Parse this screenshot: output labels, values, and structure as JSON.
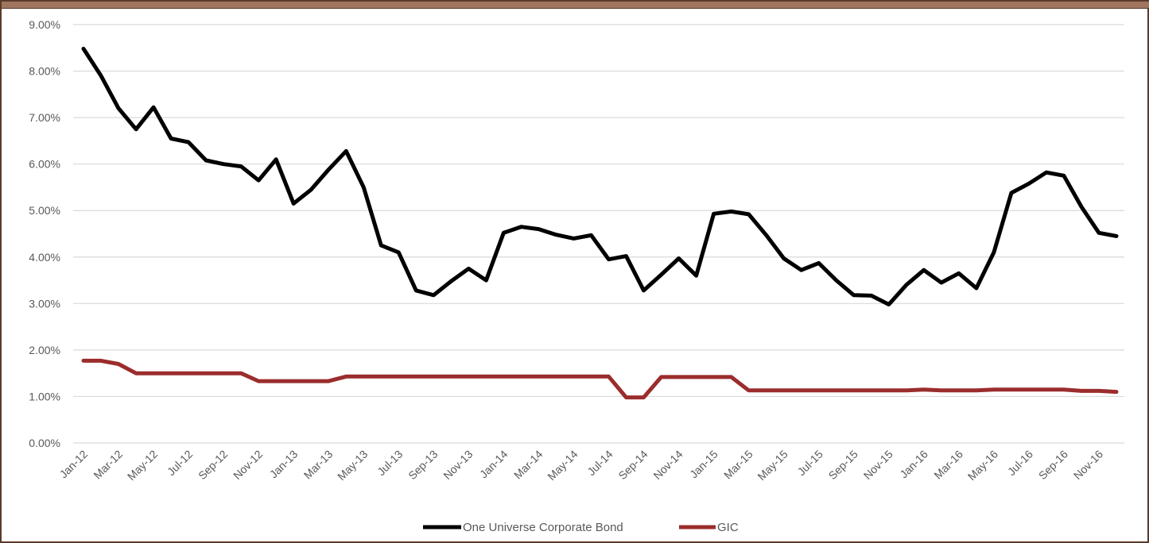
{
  "chart_data": {
    "type": "line",
    "title": "",
    "xlabel": "",
    "ylabel": "",
    "ylim": [
      0,
      9
    ],
    "y_ticks": [
      "0.00%",
      "1.00%",
      "2.00%",
      "3.00%",
      "4.00%",
      "5.00%",
      "6.00%",
      "7.00%",
      "8.00%",
      "9.00%"
    ],
    "x_tick_labels": [
      "Jan-12",
      "Mar-12",
      "May-12",
      "Jul-12",
      "Sep-12",
      "Nov-12",
      "Jan-13",
      "Mar-13",
      "May-13",
      "Jul-13",
      "Sep-13",
      "Nov-13",
      "Jan-14",
      "Mar-14",
      "May-14",
      "Jul-14",
      "Sep-14",
      "Nov-14",
      "Jan-15",
      "Mar-15",
      "May-15",
      "Jul-15",
      "Sep-15",
      "Nov-15",
      "Jan-16",
      "Mar-16",
      "May-16",
      "Jul-16",
      "Sep-16",
      "Nov-16"
    ],
    "x": [
      "Jan-12",
      "Feb-12",
      "Mar-12",
      "Apr-12",
      "May-12",
      "Jun-12",
      "Jul-12",
      "Aug-12",
      "Sep-12",
      "Oct-12",
      "Nov-12",
      "Dec-12",
      "Jan-13",
      "Feb-13",
      "Mar-13",
      "Apr-13",
      "May-13",
      "Jun-13",
      "Jul-13",
      "Aug-13",
      "Sep-13",
      "Oct-13",
      "Nov-13",
      "Dec-13",
      "Jan-14",
      "Feb-14",
      "Mar-14",
      "Apr-14",
      "May-14",
      "Jun-14",
      "Jul-14",
      "Aug-14",
      "Sep-14",
      "Oct-14",
      "Nov-14",
      "Dec-14",
      "Jan-15",
      "Feb-15",
      "Mar-15",
      "Apr-15",
      "May-15",
      "Jun-15",
      "Jul-15",
      "Aug-15",
      "Sep-15",
      "Oct-15",
      "Nov-15",
      "Dec-15",
      "Jan-16",
      "Feb-16",
      "Mar-16",
      "Apr-16",
      "May-16",
      "Jun-16",
      "Jul-16",
      "Aug-16",
      "Sep-16",
      "Oct-16",
      "Nov-16",
      "Dec-16"
    ],
    "grid": true,
    "legend_position": "bottom",
    "series": [
      {
        "name": "One Universe Corporate Bond",
        "color": "#000000",
        "values": [
          8.48,
          7.9,
          7.2,
          6.75,
          7.22,
          6.55,
          6.47,
          6.08,
          6.0,
          5.95,
          5.65,
          6.1,
          5.15,
          5.45,
          5.88,
          6.28,
          5.5,
          4.25,
          4.1,
          3.28,
          3.18,
          3.48,
          3.75,
          3.5,
          4.52,
          4.65,
          4.6,
          4.48,
          4.4,
          4.47,
          3.95,
          4.02,
          3.28,
          3.62,
          3.97,
          3.6,
          4.93,
          4.98,
          4.92,
          4.47,
          3.97,
          3.72,
          3.87,
          3.5,
          3.18,
          3.17,
          2.98,
          3.4,
          3.72,
          3.45,
          3.65,
          3.33,
          4.1,
          5.38,
          5.58,
          5.82,
          5.75,
          5.08,
          4.52,
          4.45
        ]
      },
      {
        "name": "GIC",
        "color": "#9b2d2d",
        "values": [
          1.77,
          1.77,
          1.7,
          1.5,
          1.5,
          1.5,
          1.5,
          1.5,
          1.5,
          1.5,
          1.33,
          1.33,
          1.33,
          1.33,
          1.33,
          1.43,
          1.43,
          1.43,
          1.43,
          1.43,
          1.43,
          1.43,
          1.43,
          1.43,
          1.43,
          1.43,
          1.43,
          1.43,
          1.43,
          1.43,
          1.43,
          0.98,
          0.98,
          1.42,
          1.42,
          1.42,
          1.42,
          1.42,
          1.13,
          1.13,
          1.13,
          1.13,
          1.13,
          1.13,
          1.13,
          1.13,
          1.13,
          1.13,
          1.15,
          1.13,
          1.13,
          1.13,
          1.15,
          1.15,
          1.15,
          1.15,
          1.15,
          1.12,
          1.12,
          1.1
        ]
      }
    ]
  }
}
